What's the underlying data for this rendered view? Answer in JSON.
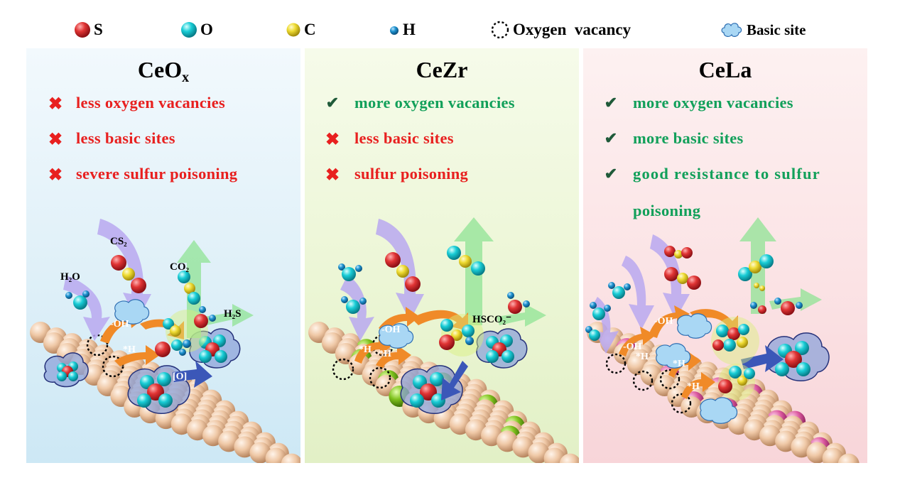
{
  "legend": {
    "s_label": "S",
    "o_label": "O",
    "c_label": "C",
    "h_label": "H",
    "vacancy_label": "Oxygen  vacancy",
    "basic_site_label": "Basic site"
  },
  "colors": {
    "sulfur": "#d8232a",
    "oxygen": "#12c4cf",
    "carbon": "#ecd628",
    "hydrogen": "#1b8ac4",
    "cerium_lattice": "#f0c9a8",
    "zr_dopant": "#79be1c",
    "la_dopant": "#d9589c",
    "bad_text": "#e8201f",
    "good_text": "#12a05a",
    "arrow_purple": "#b8a6ee",
    "arrow_orange": "#f08a28",
    "arrow_green": "#93e39a",
    "arrow_blue": "#3b57b8"
  },
  "panels": [
    {
      "title": "CeO",
      "title_sub": "x",
      "features": [
        {
          "status": "bad",
          "mark": "✖",
          "text": "less oxygen vacancies"
        },
        {
          "status": "bad",
          "mark": "✖",
          "text": "less basic sites"
        },
        {
          "status": "bad",
          "mark": "✖",
          "text": "severe sulfur poisoning"
        }
      ],
      "labels": {
        "h2o": "H₂O",
        "cs2": "CS₂",
        "co2": "CO₂",
        "h2s": "H₂S",
        "oh": "-OH",
        "h": "*H",
        "o_bracket": "[O]"
      }
    },
    {
      "title": "CeZr",
      "features": [
        {
          "status": "good",
          "mark": "✔",
          "text": "more oxygen vacancies"
        },
        {
          "status": "bad",
          "mark": "✖",
          "text": "less basic sites"
        },
        {
          "status": "bad",
          "mark": "✖",
          "text": "sulfur poisoning"
        }
      ],
      "labels": {
        "hsco2": "HSCO₂⁻",
        "oh": "-OH",
        "h1": "*H",
        "h2": "*H"
      }
    },
    {
      "title": "CeLa",
      "features": [
        {
          "status": "good",
          "mark": "✔",
          "text": "more oxygen vacancies"
        },
        {
          "status": "good",
          "mark": "✔",
          "text": "more basic sites"
        },
        {
          "status": "good",
          "mark": "✔",
          "text": "good resistance to sulfur"
        },
        {
          "status": "none",
          "mark": "",
          "text": "poisoning"
        }
      ],
      "labels": {
        "oh1": "-OH",
        "oh2": "-OH",
        "h1": "*H",
        "h2": "*H",
        "h3": "*H"
      }
    }
  ]
}
